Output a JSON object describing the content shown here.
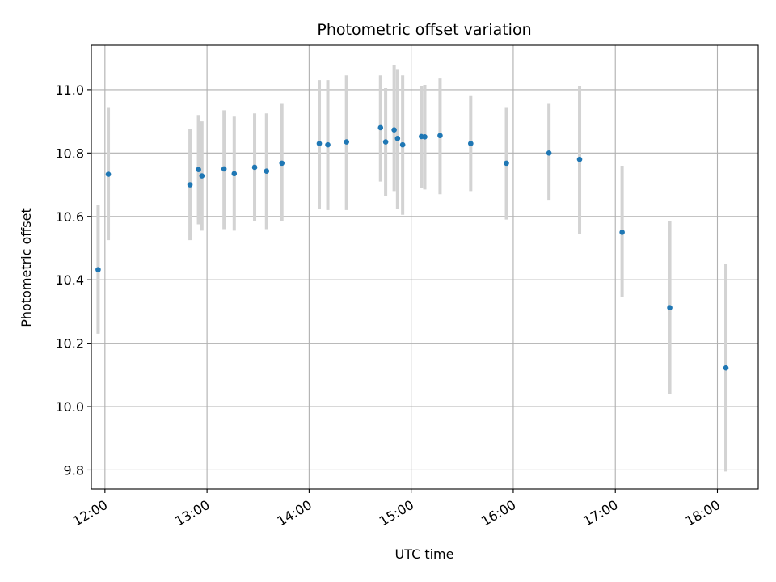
{
  "chart_data": {
    "type": "scatter",
    "title": "Photometric offset variation",
    "xlabel": "UTC time",
    "ylabel": "Photometric offset",
    "x_unit": "UTC time of day (hours)",
    "xlim": [
      "11:52",
      "18:24"
    ],
    "ylim": [
      9.74,
      11.14
    ],
    "xticks": [
      "12:00",
      "13:00",
      "14:00",
      "15:00",
      "16:00",
      "17:00",
      "18:00"
    ],
    "yticks": [
      "9.8",
      "10.0",
      "10.2",
      "10.4",
      "10.6",
      "10.8",
      "11.0"
    ],
    "grid": true,
    "colors": {
      "point": "#1f77b4",
      "errorbar": "#d3d3d3",
      "grid": "#b0b0b0"
    },
    "points": [
      {
        "x": "11:56",
        "y": 10.432,
        "ylo": 10.23,
        "yhi": 10.635
      },
      {
        "x": "12:02",
        "y": 10.733,
        "ylo": 10.525,
        "yhi": 10.945
      },
      {
        "x": "12:50",
        "y": 10.7,
        "ylo": 10.525,
        "yhi": 10.875
      },
      {
        "x": "12:55",
        "y": 10.748,
        "ylo": 10.575,
        "yhi": 10.92
      },
      {
        "x": "12:57",
        "y": 10.728,
        "ylo": 10.555,
        "yhi": 10.9
      },
      {
        "x": "13:10",
        "y": 10.75,
        "ylo": 10.56,
        "yhi": 10.935
      },
      {
        "x": "13:16",
        "y": 10.735,
        "ylo": 10.555,
        "yhi": 10.915
      },
      {
        "x": "13:28",
        "y": 10.755,
        "ylo": 10.585,
        "yhi": 10.925
      },
      {
        "x": "13:35",
        "y": 10.743,
        "ylo": 10.56,
        "yhi": 10.925
      },
      {
        "x": "13:44",
        "y": 10.768,
        "ylo": 10.585,
        "yhi": 10.955
      },
      {
        "x": "14:06",
        "y": 10.83,
        "ylo": 10.625,
        "yhi": 11.03
      },
      {
        "x": "14:11",
        "y": 10.826,
        "ylo": 10.62,
        "yhi": 11.03
      },
      {
        "x": "14:22",
        "y": 10.835,
        "ylo": 10.62,
        "yhi": 11.045
      },
      {
        "x": "14:42",
        "y": 10.88,
        "ylo": 10.71,
        "yhi": 11.045
      },
      {
        "x": "14:45",
        "y": 10.835,
        "ylo": 10.665,
        "yhi": 11.005
      },
      {
        "x": "14:50",
        "y": 10.873,
        "ylo": 10.68,
        "yhi": 11.078
      },
      {
        "x": "14:52",
        "y": 10.846,
        "ylo": 10.625,
        "yhi": 11.065
      },
      {
        "x": "14:55",
        "y": 10.826,
        "ylo": 10.605,
        "yhi": 11.045
      },
      {
        "x": "15:06",
        "y": 10.852,
        "ylo": 10.69,
        "yhi": 11.01
      },
      {
        "x": "15:08",
        "y": 10.851,
        "ylo": 10.685,
        "yhi": 11.015
      },
      {
        "x": "15:17",
        "y": 10.855,
        "ylo": 10.67,
        "yhi": 11.035
      },
      {
        "x": "15:35",
        "y": 10.83,
        "ylo": 10.68,
        "yhi": 10.98
      },
      {
        "x": "15:56",
        "y": 10.768,
        "ylo": 10.59,
        "yhi": 10.945
      },
      {
        "x": "16:21",
        "y": 10.8,
        "ylo": 10.65,
        "yhi": 10.955
      },
      {
        "x": "16:39",
        "y": 10.78,
        "ylo": 10.545,
        "yhi": 11.01
      },
      {
        "x": "17:04",
        "y": 10.55,
        "ylo": 10.345,
        "yhi": 10.76
      },
      {
        "x": "17:32",
        "y": 10.312,
        "ylo": 10.04,
        "yhi": 10.585
      },
      {
        "x": "18:05",
        "y": 10.122,
        "ylo": 9.795,
        "yhi": 10.45
      }
    ]
  }
}
